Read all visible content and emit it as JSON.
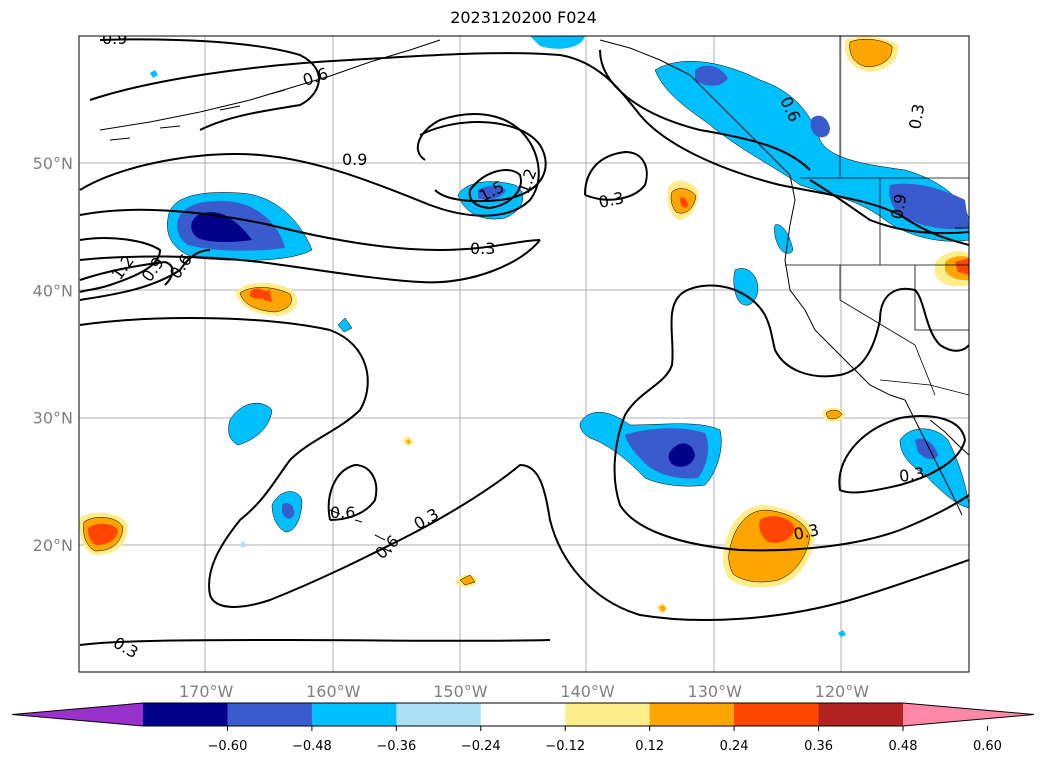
{
  "title": "2023120200 F024",
  "map": {
    "lat_range": [
      10,
      60
    ],
    "lon_range": [
      -180,
      -110
    ],
    "lat_ticks": [
      {
        "value": 20,
        "label": "20°N"
      },
      {
        "value": 30,
        "label": "30°N"
      },
      {
        "value": 40,
        "label": "40°N"
      },
      {
        "value": 50,
        "label": "50°N"
      }
    ],
    "lon_ticks": [
      {
        "value": -170,
        "label": "170°W"
      },
      {
        "value": -160,
        "label": "160°W"
      },
      {
        "value": -150,
        "label": "150°W"
      },
      {
        "value": -140,
        "label": "140°W"
      },
      {
        "value": -130,
        "label": "130°W"
      },
      {
        "value": -120,
        "label": "120°W"
      }
    ],
    "contour_labels": [
      "0.9",
      "0.6",
      "0.9",
      "1.5",
      "1.2",
      "0.3",
      "0.3",
      "1.2",
      "0.9",
      "0.6",
      "0.3",
      "0.6",
      "0.3",
      "0.3",
      "0.6",
      "0.3",
      "0.6",
      "0.3",
      "0.9"
    ]
  },
  "colorbar": {
    "ticks": [
      "−0.60",
      "−0.48",
      "−0.36",
      "−0.24",
      "−0.12",
      "0.12",
      "0.24",
      "0.36",
      "0.48",
      "0.60"
    ],
    "colors": [
      "#9932cc",
      "#00008b",
      "#3a5bcd",
      "#00bfff",
      "#addff5",
      "#ffffff",
      "#ffec8b",
      "#ffa500",
      "#ff4500",
      "#b22222",
      "#ff88a8"
    ]
  }
}
